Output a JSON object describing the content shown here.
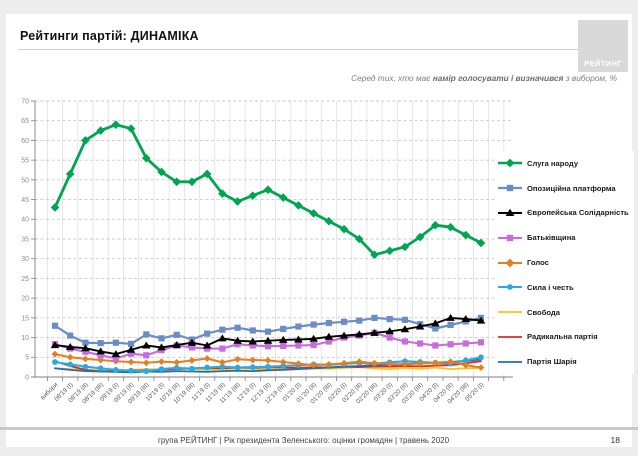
{
  "header": {
    "title": "Рейтинги партій: ДИНАМІКА",
    "logo_text": "РЕЙТИНГ",
    "subtitle_prefix": "Серед тих, хто має ",
    "subtitle_bold": "намір голосувати і визначився",
    "subtitle_suffix": " з вибором, %"
  },
  "chart_data": {
    "type": "line",
    "title": "Рейтинги партій: ДИНАМІКА",
    "subtitle": "Серед тих, хто має намір голосувати і визначився з вибором, %",
    "ylim": [
      0,
      70
    ],
    "ytick_step": 5,
    "grid": true,
    "legend_position": "right",
    "categories": [
      "вибори",
      "08'19 (I)",
      "08'19 (II)",
      "08'19 (III)",
      "09'19 (I)",
      "09'19 (II)",
      "09'19 (III)",
      "10'19 (I)",
      "10'19 (II)",
      "10'19 (III)",
      "11'19 (I)",
      "11'19 (II)",
      "11'19 (III)",
      "12'19 (I)",
      "12'19 (II)",
      "12'19 (III)",
      "01'20 (I)",
      "01'20 (II)",
      "01'20 (III)",
      "02'20 (I)",
      "02'20 (II)",
      "02'20 (III)",
      "03'20 (I)",
      "03'20 (II)",
      "03'20 (III)",
      "04'20 (I)",
      "04'20 (II)",
      "04'20 (III)",
      "05'20 (I)"
    ],
    "series": [
      {
        "name": "Свобода",
        "color": "#ffc20e",
        "marker": "none",
        "line_width": 1.8,
        "values": [
          2.2,
          2,
          1.8,
          1.7,
          1.6,
          1.8,
          2,
          1.9,
          2.1,
          2,
          1.8,
          2,
          2.2,
          2.1,
          2,
          2.2,
          2.4,
          2.2,
          2.1,
          2.3,
          2.5,
          2.2,
          2,
          2.3,
          2.1,
          2.4,
          2,
          2.2,
          2.3
        ]
      },
      {
        "name": "Радикальна партія",
        "color": "#d92b27",
        "marker": "none",
        "line_width": 1.8,
        "values": [
          4,
          2.8,
          1.8,
          1.4,
          1.5,
          1.7,
          1.6,
          1.8,
          2,
          2.2,
          2.3,
          2.2,
          2.4,
          2.3,
          2.5,
          2.4,
          2.3,
          2.5,
          2.4,
          2.6,
          2.5,
          2.7,
          2.6,
          2.8,
          2.7,
          2.9,
          3,
          3.5,
          4
        ]
      },
      {
        "name": "Партія Шарія",
        "color": "#1f6fb2",
        "marker": "none",
        "line_width": 1.8,
        "values": [
          2.2,
          1.8,
          1.5,
          1.4,
          1.3,
          1.2,
          1.4,
          1.3,
          1.5,
          1.4,
          1.3,
          1.5,
          1.6,
          1.5,
          1.7,
          1.8,
          2,
          2.2,
          2.4,
          2.6,
          2.8,
          3,
          3.1,
          3.3,
          3.5,
          3.6,
          3.8,
          4.1,
          4.5
        ]
      },
      {
        "name": "Сила і честь",
        "color": "#29abe2",
        "marker": "circle",
        "line_width": 2.1,
        "values": [
          3.8,
          3.2,
          2.6,
          2.2,
          1.8,
          1.6,
          1.5,
          2,
          2.3,
          2.1,
          2.4,
          2.6,
          2.4,
          2.5,
          2.6,
          2.8,
          3,
          3.2,
          3.1,
          3.3,
          3.6,
          3.4,
          3.7,
          4,
          3.8,
          3.6,
          3.4,
          4.2,
          5
        ]
      },
      {
        "name": "Голос",
        "color": "#e87d1e",
        "marker": "diamond",
        "line_width": 2,
        "values": [
          5.8,
          5,
          4.6,
          4.3,
          4,
          3.8,
          3.6,
          3.9,
          3.7,
          4.2,
          4.7,
          3.7,
          4.5,
          4.3,
          4.2,
          3.8,
          3.4,
          3,
          3.2,
          3.5,
          3.9,
          3.5,
          3.3,
          3.2,
          3.4,
          3.6,
          3.9,
          3,
          2.4
        ]
      },
      {
        "name": "Батьківщина",
        "color": "#c96be0",
        "marker": "square",
        "line_width": 2.1,
        "values": [
          8.3,
          7.2,
          6.4,
          5.5,
          4.7,
          5.9,
          5.5,
          6.8,
          8,
          7.5,
          7.2,
          7.2,
          8.3,
          8,
          7.8,
          7.9,
          8,
          8.1,
          9,
          10,
          10.5,
          11.2,
          10,
          9,
          8.5,
          8,
          8.3,
          8.5,
          8.8
        ]
      },
      {
        "name": "Опозиційна платформа",
        "color": "#6b8cc7",
        "marker": "square",
        "line_width": 2.2,
        "values": [
          13,
          10.5,
          8.7,
          8.6,
          8.7,
          8.4,
          10.8,
          9.8,
          10.7,
          9.5,
          11,
          12,
          12.5,
          11.8,
          11.5,
          12.2,
          12.8,
          13.3,
          13.7,
          14,
          14.3,
          15,
          14.7,
          14.5,
          13.4,
          12.3,
          13.2,
          14.1,
          15
        ]
      },
      {
        "name": "Європейська Солідарність",
        "color": "#000000",
        "marker": "triangle",
        "line_width": 1.9,
        "values": [
          8.1,
          7.6,
          7.3,
          6.5,
          5.8,
          6.9,
          8,
          7.5,
          8.1,
          8.7,
          8,
          9.8,
          9.2,
          9,
          9.2,
          9.4,
          9.5,
          9.7,
          10.2,
          10.5,
          10.8,
          11.2,
          11.6,
          12.1,
          12.8,
          13.6,
          15,
          14.7,
          14.3
        ]
      },
      {
        "name": "Слуга народу",
        "color": "#00a551",
        "marker": "diamond",
        "line_width": 2.8,
        "values": [
          43,
          51.5,
          60,
          62.5,
          64,
          63,
          55.5,
          52,
          49.5,
          49.5,
          51.5,
          46.5,
          44.5,
          46,
          47.5,
          45.5,
          43.5,
          41.5,
          39.5,
          37.5,
          35,
          31,
          32,
          33,
          35.5,
          38.5,
          38,
          36,
          34
        ]
      }
    ],
    "legend_order": [
      "Слуга народу",
      "Опозиційна платформа",
      "Європейська Солідарність",
      "Батьківщина",
      "Голос",
      "Сила і честь",
      "Свобода",
      "Радикальна партія",
      "Партія Шарія"
    ]
  },
  "footer": {
    "text": "група РЕЙТИНГ |  Рік президента Зеленського: оцінки громадян | травень 2020",
    "page_number": "18"
  }
}
